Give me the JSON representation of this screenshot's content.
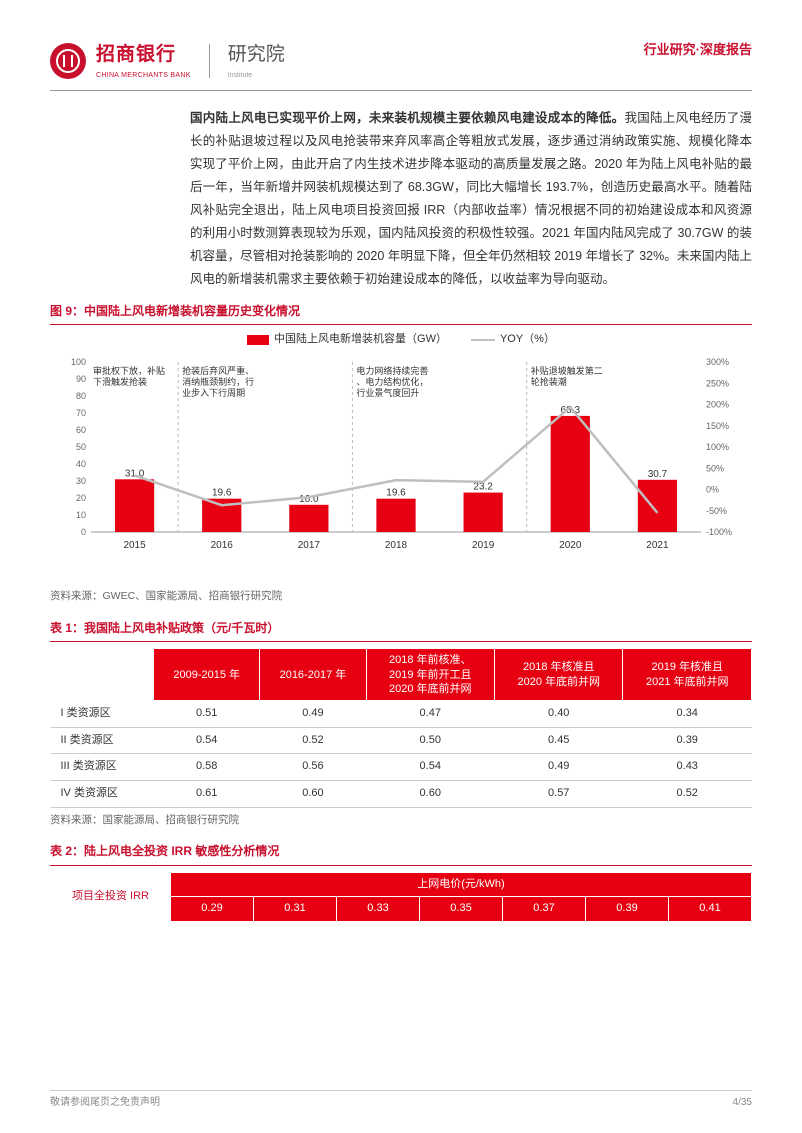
{
  "header": {
    "bank_cn": "招商银行",
    "bank_en": "CHINA MERCHANTS BANK",
    "institute_cn": "研究院",
    "institute_en": "Institute",
    "right": "行业研究·深度报告",
    "logo_color": "#c8102e"
  },
  "body": {
    "bold_lead": "国内陆上风电已实现平价上网，未来装机规模主要依赖风电建设成本的降低。",
    "para": "我国陆上风电经历了漫长的补贴退坡过程以及风电抢装带来弃风率高企等粗放式发展，逐步通过消纳政策实施、规模化降本实现了平价上网，由此开启了内生技术进步降本驱动的高质量发展之路。2020 年为陆上风电补贴的最后一年，当年新增并网装机规模达到了 68.3GW，同比大幅增长 193.7%，创造历史最高水平。随着陆风补贴完全退出，陆上风电项目投资回报 IRR（内部收益率）情况根据不同的初始建设成本和风资源的利用小时数测算表现较为乐观，国内陆风投资的积极性较强。2021 年国内陆风完成了 30.7GW 的装机容量，尽管相对抢装影响的 2020 年明显下降，但全年仍然相较 2019 年增长了 32%。未来国内陆上风电的新增装机需求主要依赖于初始建设成本的降低，以收益率为导向驱动。"
  },
  "figure9": {
    "title": "图 9：中国陆上风电新增装机容量历史变化情况",
    "legend_bar": "中国陆上风电新增装机容量（GW）",
    "legend_line": "YOY（%）",
    "bar_color": "#e60012",
    "line_color": "#bfbfbf",
    "grid_color": "#d9d9d9",
    "text_color": "#333333",
    "years": [
      "2015",
      "2016",
      "2017",
      "2018",
      "2019",
      "2020",
      "2021"
    ],
    "bar_values": [
      31.0,
      19.6,
      16.0,
      19.6,
      23.2,
      68.3,
      30.7
    ],
    "yoy_values": [
      33,
      -37,
      -18,
      22,
      18,
      194,
      -55
    ],
    "y_left_ticks": [
      0,
      10,
      20,
      30,
      40,
      50,
      60,
      70,
      80,
      90,
      100
    ],
    "y_left_max": 100,
    "y_right_ticks": [
      -100,
      -50,
      0,
      50,
      100,
      150,
      200,
      250,
      300
    ],
    "y_right_min": -100,
    "y_right_max": 300,
    "annotations": [
      {
        "x_idx": 0,
        "text": "审批权下放，补贴下滑触发抢装"
      },
      {
        "x_idx": 1,
        "text": "抢装后弃风严重、消纳瓶颈制约，行业步入下行周期"
      },
      {
        "x_idx": 3,
        "text": "电力网络持续完善、电力结构优化，行业景气度回升"
      },
      {
        "x_idx": 5,
        "text": "补贴退坡触发第二轮抢装潮"
      }
    ],
    "source": "资料来源：GWEC、国家能源局、招商银行研究院"
  },
  "table1": {
    "title": "表 1：我国陆上风电补贴政策（元/千瓦时）",
    "header_bg": "#e60012",
    "columns": [
      "",
      "2009-2015 年",
      "2016-2017 年",
      "2018 年前核准、2019 年前开工且2020 年底前并网",
      "2018 年核准且2020 年底前并网",
      "2019 年核准且2021 年底前并网"
    ],
    "rows": [
      [
        "I 类资源区",
        "0.51",
        "0.49",
        "0.47",
        "0.40",
        "0.34"
      ],
      [
        "II 类资源区",
        "0.54",
        "0.52",
        "0.50",
        "0.45",
        "0.39"
      ],
      [
        "III 类资源区",
        "0.58",
        "0.56",
        "0.54",
        "0.49",
        "0.43"
      ],
      [
        "IV 类资源区",
        "0.61",
        "0.60",
        "0.60",
        "0.57",
        "0.52"
      ]
    ],
    "source": "资料来源：国家能源局、招商银行研究院"
  },
  "table2": {
    "title": "表 2：陆上风电全投资 IRR 敏感性分析情况",
    "left_label": "项目全投资 IRR",
    "top_label": "上网电价(元/kWh)",
    "prices": [
      "0.29",
      "0.31",
      "0.33",
      "0.35",
      "0.37",
      "0.39",
      "0.41"
    ]
  },
  "footer": {
    "left": "敬请参阅尾页之免责声明",
    "right": "4/35"
  }
}
